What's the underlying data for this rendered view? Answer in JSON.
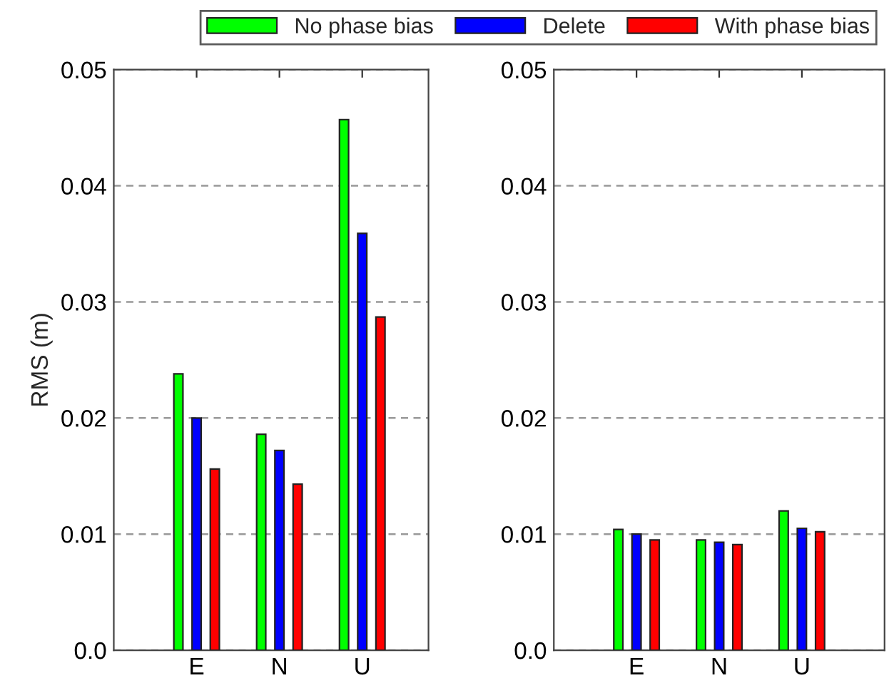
{
  "chart_data": [
    {
      "type": "bar",
      "ylabel": "RMS (m)",
      "categories": [
        "E",
        "N",
        "U"
      ],
      "series": [
        {
          "name": "No phase bias",
          "color": "#00ff00",
          "values": [
            0.0238,
            0.0186,
            0.0457
          ]
        },
        {
          "name": "Delete",
          "color": "#0000ff",
          "values": [
            0.02,
            0.0172,
            0.0359
          ]
        },
        {
          "name": "With phase bias",
          "color": "#ff0000",
          "values": [
            0.0156,
            0.0143,
            0.0287
          ]
        }
      ],
      "ylim": [
        0,
        0.05
      ],
      "yticks": [
        {
          "value": 0,
          "label": "0.0"
        },
        0.01,
        0.02,
        0.03,
        0.04,
        0.05
      ],
      "grid": "y",
      "legend": "top"
    },
    {
      "type": "bar",
      "categories": [
        "E",
        "N",
        "U"
      ],
      "series": [
        {
          "color": "#00ff00",
          "values": [
            0.0104,
            0.0095,
            0.012
          ]
        },
        {
          "color": "#0000ff",
          "values": [
            0.01,
            0.0093,
            0.0105
          ]
        },
        {
          "color": "#ff0000",
          "values": [
            0.0095,
            0.0091,
            0.0102
          ]
        }
      ],
      "ylim": [
        0,
        0.05
      ],
      "yticks": [
        {
          "value": 0,
          "label": "0.0"
        },
        0.01,
        0.02,
        0.03,
        0.04,
        0.05
      ],
      "grid": "y"
    }
  ]
}
